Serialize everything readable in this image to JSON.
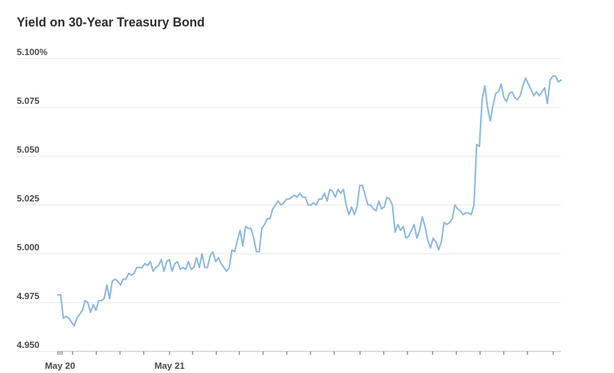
{
  "chart_data": {
    "type": "line",
    "title": "Yield on 30-Year Treasury Bond",
    "xlabel": "",
    "ylabel": "",
    "ylim": [
      4.95,
      5.1
    ],
    "y_ticks": [
      "4.950",
      "4.975",
      "5.000",
      "5.025",
      "5.050",
      "5.075",
      "5.100%"
    ],
    "y_tick_values": [
      4.95,
      4.975,
      5.0,
      5.025,
      5.05,
      5.075,
      5.1
    ],
    "x_ticks": [
      "May 20",
      "May 21"
    ],
    "grid": true,
    "color": "#8db8dd",
    "series": [
      {
        "values": [
          4.979,
          4.979,
          4.967,
          4.968,
          4.967,
          4.965,
          4.963,
          4.967,
          4.969,
          4.971,
          4.976,
          4.975,
          4.97,
          4.974,
          4.971,
          4.976,
          4.976,
          4.977,
          4.984,
          4.977,
          4.986,
          4.987,
          4.986,
          4.984,
          4.987,
          4.987,
          4.99,
          4.989,
          4.99,
          4.993,
          4.993,
          4.993,
          4.995,
          4.994,
          4.996,
          4.991,
          4.993,
          4.994,
          4.997,
          4.991,
          4.996,
          4.997,
          4.991,
          4.995,
          4.996,
          4.992,
          4.993,
          4.992,
          4.996,
          4.992,
          4.993,
          4.998,
          4.993,
          5.0,
          4.993,
          4.993,
          4.999,
          5.001,
          4.996,
          4.998,
          4.995,
          4.993,
          4.991,
          4.993,
          5.002,
          5.001,
          5.007,
          5.012,
          5.004,
          5.014,
          5.013,
          5.013,
          5.008,
          5.001,
          5.001,
          5.013,
          5.015,
          5.018,
          5.018,
          5.023,
          5.025,
          5.027,
          5.025,
          5.026,
          5.028,
          5.028,
          5.029,
          5.03,
          5.029,
          5.031,
          5.029,
          5.029,
          5.025,
          5.025,
          5.026,
          5.025,
          5.028,
          5.028,
          5.031,
          5.027,
          5.033,
          5.032,
          5.029,
          5.033,
          5.031,
          5.033,
          5.025,
          5.02,
          5.024,
          5.02,
          5.024,
          5.035,
          5.035,
          5.03,
          5.025,
          5.025,
          5.023,
          5.022,
          5.027,
          5.023,
          5.024,
          5.029,
          5.028,
          5.025,
          5.011,
          5.015,
          5.012,
          5.014,
          5.008,
          5.009,
          5.012,
          5.015,
          5.008,
          5.012,
          5.019,
          5.014,
          5.007,
          5.003,
          5.008,
          5.006,
          5.002,
          5.006,
          5.016,
          5.015,
          5.016,
          5.018,
          5.025,
          5.023,
          5.022,
          5.02,
          5.021,
          5.021,
          5.02,
          5.025,
          5.056,
          5.055,
          5.079,
          5.086,
          5.075,
          5.068,
          5.076,
          5.082,
          5.083,
          5.087,
          5.08,
          5.078,
          5.082,
          5.083,
          5.08,
          5.079,
          5.081,
          5.086,
          5.09,
          5.087,
          5.084,
          5.081,
          5.083,
          5.081,
          5.083,
          5.085,
          5.077,
          5.089,
          5.091,
          5.091,
          5.088,
          5.089
        ]
      }
    ]
  }
}
